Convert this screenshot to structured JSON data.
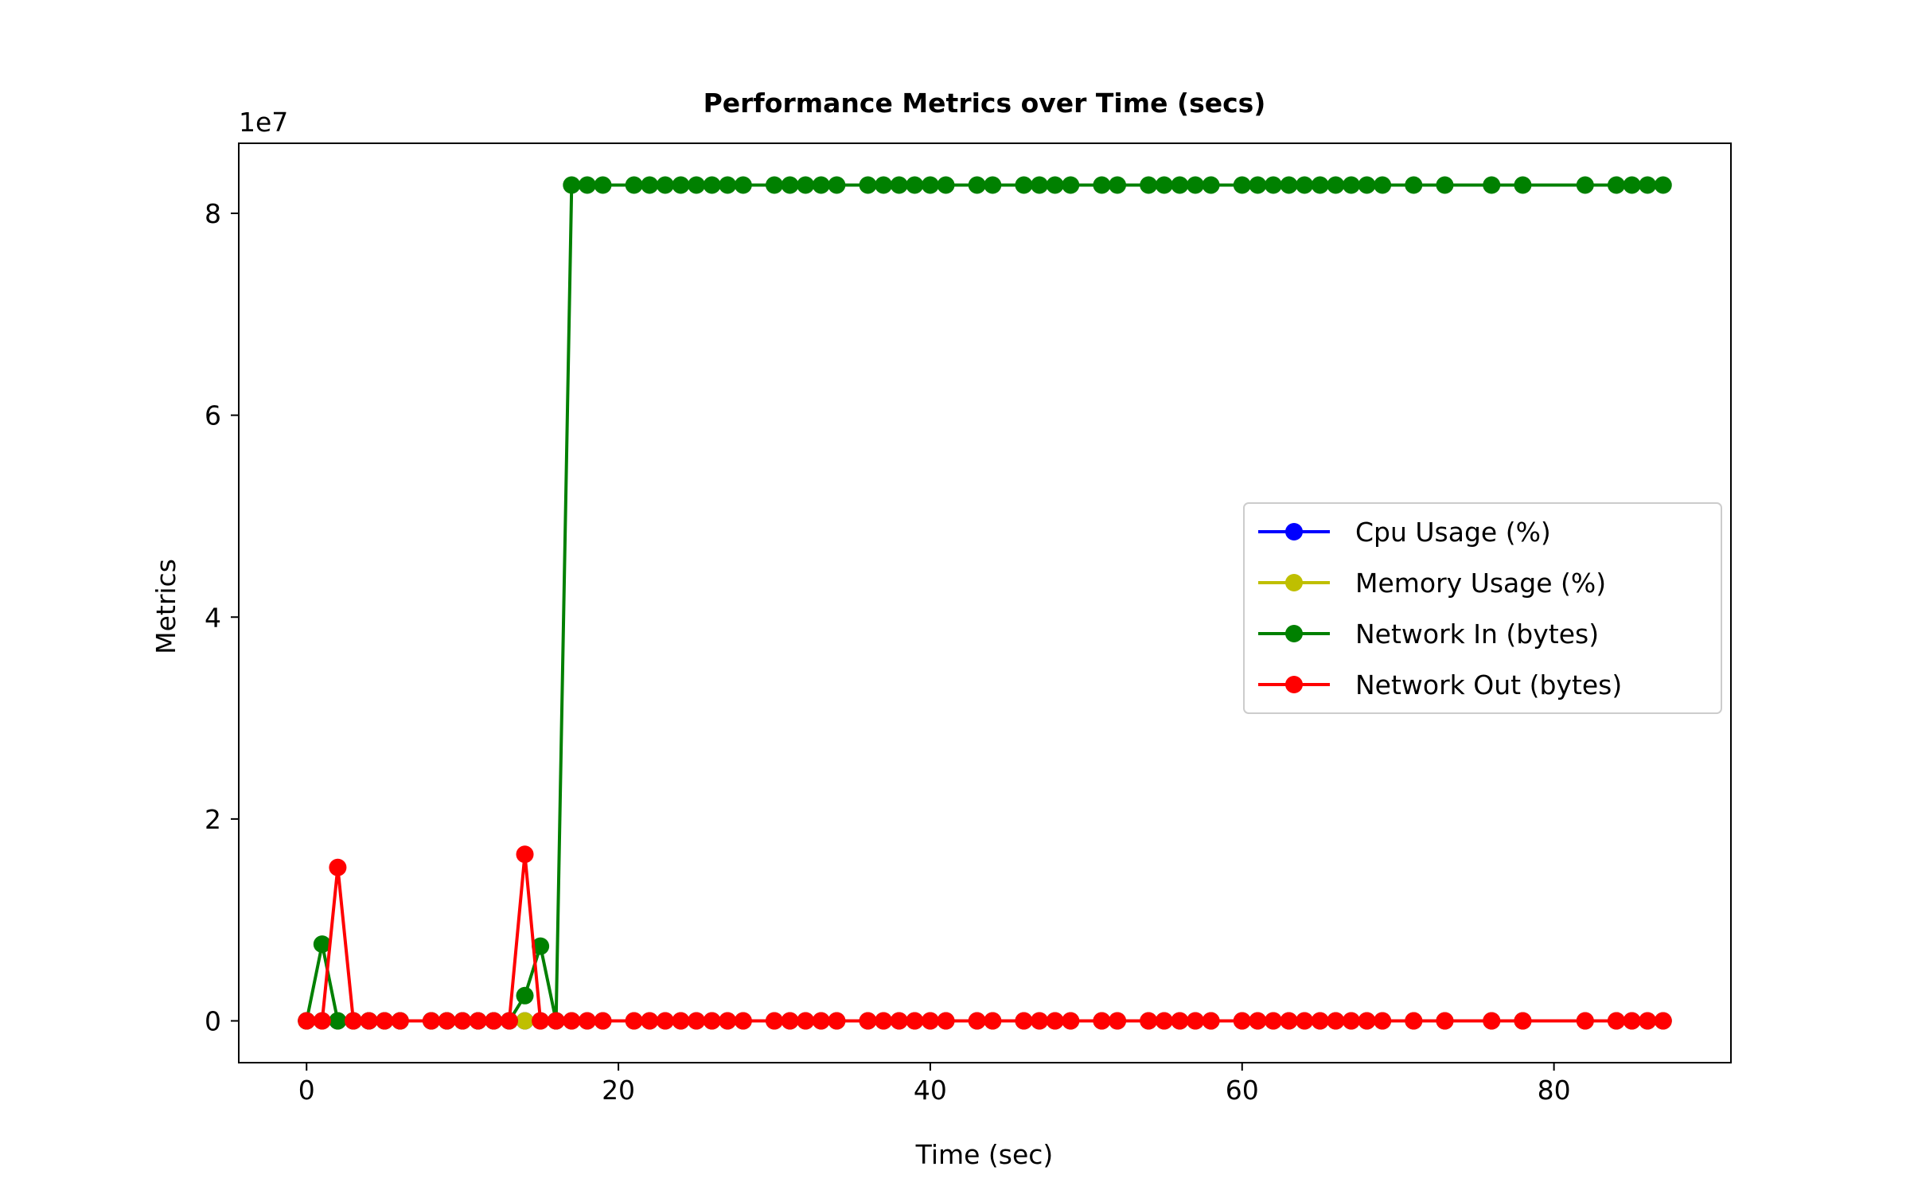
{
  "chart_data": {
    "type": "line",
    "title": "Performance Metrics over Time (secs)",
    "xlabel": "Time (sec)",
    "ylabel": "Metrics",
    "y_offset_text": "1e7",
    "xlim": [
      -4.35,
      91.35
    ],
    "ylim": [
      -4140000,
      86940000
    ],
    "x_ticks": [
      0,
      20,
      40,
      60,
      80
    ],
    "x_tick_labels": [
      "0",
      "20",
      "40",
      "60",
      "80"
    ],
    "y_ticks": [
      0,
      20000000,
      40000000,
      60000000,
      80000000
    ],
    "y_tick_labels": [
      "0",
      "2",
      "4",
      "6",
      "8"
    ],
    "grid": false,
    "legend_position": "center-right",
    "x": [
      0,
      1,
      2,
      3,
      4,
      5,
      6,
      8,
      9,
      10,
      11,
      12,
      13,
      14,
      15,
      16,
      17,
      18,
      19,
      21,
      22,
      23,
      24,
      25,
      26,
      27,
      28,
      30,
      31,
      32,
      33,
      34,
      36,
      37,
      38,
      39,
      40,
      41,
      43,
      44,
      46,
      47,
      48,
      49,
      51,
      52,
      54,
      55,
      56,
      57,
      58,
      60,
      61,
      62,
      63,
      64,
      65,
      66,
      67,
      68,
      69,
      71,
      73,
      76,
      78,
      82,
      84,
      85,
      86,
      87
    ],
    "series": [
      {
        "name": "Cpu Usage (%)",
        "color": "#0000ff",
        "values": [
          0,
          0,
          0,
          0,
          0,
          0,
          0,
          0,
          0,
          0,
          0,
          0,
          0,
          0,
          0,
          0,
          0,
          0,
          0,
          0,
          0,
          0,
          0,
          0,
          0,
          0,
          0,
          0,
          0,
          0,
          0,
          0,
          0,
          0,
          0,
          0,
          0,
          0,
          0,
          0,
          0,
          0,
          0,
          0,
          0,
          0,
          0,
          0,
          0,
          0,
          0,
          0,
          0,
          0,
          0,
          0,
          0,
          0,
          0,
          0,
          0,
          0,
          0,
          0,
          0,
          0,
          0,
          0,
          0,
          0
        ]
      },
      {
        "name": "Memory Usage (%)",
        "color": "#bfbf00",
        "values": [
          0,
          0,
          0,
          0,
          0,
          0,
          0,
          0,
          0,
          0,
          0,
          0,
          0,
          0,
          0,
          0,
          0,
          0,
          0,
          0,
          0,
          0,
          0,
          0,
          0,
          0,
          0,
          0,
          0,
          0,
          0,
          0,
          0,
          0,
          0,
          0,
          0,
          0,
          0,
          0,
          0,
          0,
          0,
          0,
          0,
          0,
          0,
          0,
          0,
          0,
          0,
          0,
          0,
          0,
          0,
          0,
          0,
          0,
          0,
          0,
          0,
          0,
          0,
          0,
          0,
          0,
          0,
          0,
          0,
          0
        ]
      },
      {
        "name": "Network In (bytes)",
        "color": "#008000",
        "values": [
          0,
          7600000,
          0,
          0,
          0,
          0,
          0,
          0,
          0,
          0,
          0,
          0,
          0,
          2500000,
          7400000,
          0,
          82800000,
          82800000,
          82800000,
          82800000,
          82800000,
          82800000,
          82800000,
          82800000,
          82800000,
          82800000,
          82800000,
          82800000,
          82800000,
          82800000,
          82800000,
          82800000,
          82800000,
          82800000,
          82800000,
          82800000,
          82800000,
          82800000,
          82800000,
          82800000,
          82800000,
          82800000,
          82800000,
          82800000,
          82800000,
          82800000,
          82800000,
          82800000,
          82800000,
          82800000,
          82800000,
          82800000,
          82800000,
          82800000,
          82800000,
          82800000,
          82800000,
          82800000,
          82800000,
          82800000,
          82800000,
          82800000,
          82800000,
          82800000,
          82800000,
          82800000,
          82800000,
          82800000,
          82800000,
          82800000
        ]
      },
      {
        "name": "Network Out (bytes)",
        "color": "#ff0000",
        "values": [
          0,
          0,
          15200000,
          0,
          0,
          0,
          0,
          0,
          0,
          0,
          0,
          0,
          0,
          16500000,
          0,
          0,
          0,
          0,
          0,
          0,
          0,
          0,
          0,
          0,
          0,
          0,
          0,
          0,
          0,
          0,
          0,
          0,
          0,
          0,
          0,
          0,
          0,
          0,
          0,
          0,
          0,
          0,
          0,
          0,
          0,
          0,
          0,
          0,
          0,
          0,
          0,
          0,
          0,
          0,
          0,
          0,
          0,
          0,
          0,
          0,
          0,
          0,
          0,
          0,
          0,
          0,
          0,
          0,
          0,
          0
        ]
      }
    ]
  }
}
